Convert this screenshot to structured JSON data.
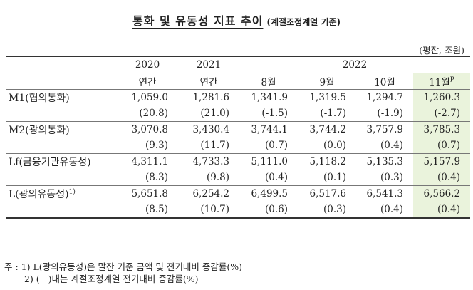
{
  "title": "통화 및 유동성 지표 추이",
  "subtitle": "(계절조정계열 기준)",
  "unit": "(평잔, 조원)",
  "header": {
    "years": [
      "2020",
      "2021",
      "2022"
    ],
    "periods": [
      "연간",
      "연간",
      "8월",
      "9월",
      "10월",
      "11월"
    ],
    "prelim_mark": "P"
  },
  "rows": [
    {
      "label": "M1(협의통화)",
      "label_sup": "",
      "values": [
        "1,059.0",
        "1,281.6",
        "1,341.9",
        "1,319.5",
        "1,294.7",
        "1,260.3"
      ],
      "changes": [
        "(20.8)",
        "(21.0)",
        "(-1.5)",
        "(-1.7)",
        "(-1.9)",
        "(-2.7)"
      ]
    },
    {
      "label": "M2(광의통화)",
      "label_sup": "",
      "values": [
        "3,070.8",
        "3,430.4",
        "3,744.1",
        "3,744.2",
        "3,757.9",
        "3,785.3"
      ],
      "changes": [
        "(9.3)",
        "(11.7)",
        "(0.7)",
        "(0.0)",
        "(0.4)",
        "(0.7)"
      ]
    },
    {
      "label": "Lf(금융기관유동성)",
      "label_sup": "",
      "values": [
        "4,311.1",
        "4,733.3",
        "5,111.0",
        "5,118.2",
        "5,135.3",
        "5,157.9"
      ],
      "changes": [
        "(8.3)",
        "(9.8)",
        "(0.4)",
        "(0.1)",
        "(0.3)",
        "(0.4)"
      ]
    },
    {
      "label": "L(광의유동성)",
      "label_sup": "1)",
      "values": [
        "5,651.8",
        "6,254.2",
        "6,499.5",
        "6,517.6",
        "6,541.3",
        "6,566.2"
      ],
      "changes": [
        "(8.5)",
        "(10.7)",
        "(0.6)",
        "(0.3)",
        "(0.4)",
        "(0.4)"
      ]
    }
  ],
  "notes": {
    "prefix": "주 : ",
    "note1": "1) L(광의유동성)은 말잔 기준 금액 및 전기대비 증감률(%)",
    "note2": "2) (   )내는 계절조정계열 전기대비 증감률(%)"
  },
  "colors": {
    "highlight": "#eaf3dc"
  }
}
